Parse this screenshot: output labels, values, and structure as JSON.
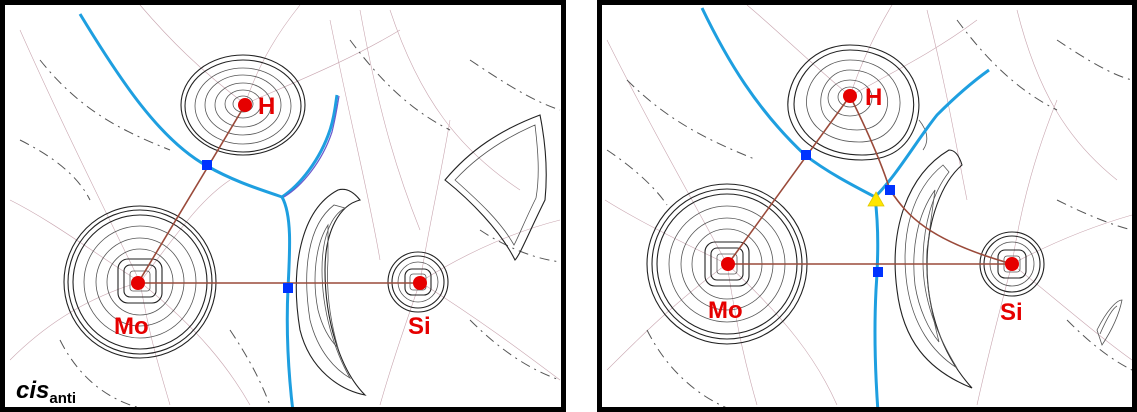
{
  "panels": [
    {
      "title": "cis",
      "subscript": "anti",
      "atoms": {
        "h": "H",
        "mo": "Mo",
        "si": "Si"
      }
    },
    {
      "title": "",
      "subscript": "",
      "atoms": {
        "h": "H",
        "mo": "Mo",
        "si": "Si"
      }
    }
  ],
  "colors": {
    "surface": "#1e9fe0",
    "nucleus": "#e60000",
    "bcp": "#0033ff",
    "rcp": "#ffe600",
    "bond_path": "#9a4a3a",
    "frame": "#000000"
  },
  "markers": {
    "panel1": {
      "bond_critical_points": 2,
      "ring_critical_points": 0
    },
    "panel2": {
      "bond_critical_points": 3,
      "ring_critical_points": 1
    }
  }
}
